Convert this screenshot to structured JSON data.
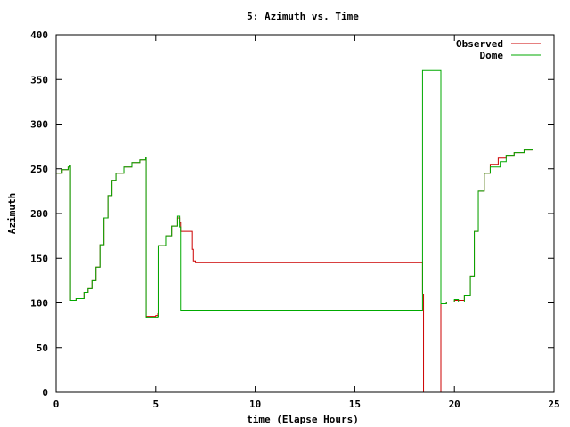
{
  "chart_data": {
    "type": "line",
    "title": "5: Azimuth vs. Time",
    "xlabel": "time (Elapse Hours)",
    "ylabel": "Azimuth",
    "xlim": [
      0,
      25
    ],
    "ylim": [
      0,
      400
    ],
    "xticks": [
      0,
      5,
      10,
      15,
      20,
      25
    ],
    "yticks": [
      0,
      50,
      100,
      150,
      200,
      250,
      300,
      350,
      400
    ],
    "grid": false,
    "legend_position": "top-right",
    "series": [
      {
        "name": "Observed",
        "color": "#cc0000",
        "step": true,
        "points": [
          [
            0,
            245
          ],
          [
            0.3,
            249
          ],
          [
            0.6,
            252
          ],
          [
            0.7,
            253
          ],
          [
            0.72,
            103
          ],
          [
            1.0,
            105
          ],
          [
            1.4,
            112
          ],
          [
            1.6,
            116
          ],
          [
            1.8,
            125
          ],
          [
            2.0,
            140
          ],
          [
            2.2,
            165
          ],
          [
            2.4,
            195
          ],
          [
            2.6,
            220
          ],
          [
            2.8,
            237
          ],
          [
            3.0,
            245
          ],
          [
            3.4,
            252
          ],
          [
            3.8,
            257
          ],
          [
            4.2,
            260
          ],
          [
            4.5,
            262
          ],
          [
            4.52,
            85
          ],
          [
            5.0,
            86
          ],
          [
            5.1,
            88
          ],
          [
            5.12,
            164
          ],
          [
            5.5,
            175
          ],
          [
            5.8,
            186
          ],
          [
            6.1,
            195
          ],
          [
            6.2,
            190
          ],
          [
            6.25,
            180
          ],
          [
            6.8,
            180
          ],
          [
            6.85,
            160
          ],
          [
            6.9,
            147
          ],
          [
            7.0,
            145
          ],
          [
            18.3,
            145
          ],
          [
            18.4,
            110
          ],
          [
            18.45,
            0
          ],
          [
            19.3,
            0
          ],
          [
            19.32,
            99
          ],
          [
            19.6,
            101
          ],
          [
            20.0,
            103
          ],
          [
            20.2,
            103
          ],
          [
            20.5,
            108
          ],
          [
            20.8,
            130
          ],
          [
            21.0,
            180
          ],
          [
            21.2,
            225
          ],
          [
            21.5,
            245
          ],
          [
            21.8,
            255
          ],
          [
            22.2,
            262
          ],
          [
            22.6,
            265
          ],
          [
            23.0,
            268
          ],
          [
            23.5,
            271
          ],
          [
            23.9,
            272
          ]
        ]
      },
      {
        "name": "Dome",
        "color": "#00aa00",
        "step": true,
        "points": [
          [
            0,
            245
          ],
          [
            0.3,
            249
          ],
          [
            0.6,
            252
          ],
          [
            0.7,
            254
          ],
          [
            0.72,
            103
          ],
          [
            1.0,
            105
          ],
          [
            1.4,
            112
          ],
          [
            1.6,
            116
          ],
          [
            1.8,
            125
          ],
          [
            2.0,
            140
          ],
          [
            2.2,
            165
          ],
          [
            2.4,
            195
          ],
          [
            2.6,
            220
          ],
          [
            2.8,
            237
          ],
          [
            3.0,
            245
          ],
          [
            3.4,
            252
          ],
          [
            3.8,
            257
          ],
          [
            4.2,
            260
          ],
          [
            4.5,
            263
          ],
          [
            4.52,
            84
          ],
          [
            5.0,
            84
          ],
          [
            5.1,
            85
          ],
          [
            5.12,
            164
          ],
          [
            5.5,
            175
          ],
          [
            5.8,
            186
          ],
          [
            6.1,
            197
          ],
          [
            6.2,
            185
          ],
          [
            6.25,
            91
          ],
          [
            18.3,
            91
          ],
          [
            18.4,
            360
          ],
          [
            19.3,
            360
          ],
          [
            19.32,
            99
          ],
          [
            19.6,
            101
          ],
          [
            20.0,
            104
          ],
          [
            20.2,
            101
          ],
          [
            20.5,
            108
          ],
          [
            20.8,
            130
          ],
          [
            21.0,
            180
          ],
          [
            21.2,
            225
          ],
          [
            21.5,
            245
          ],
          [
            21.8,
            252
          ],
          [
            22.2,
            252
          ],
          [
            22.3,
            258
          ],
          [
            22.6,
            265
          ],
          [
            23.0,
            268
          ],
          [
            23.5,
            271
          ],
          [
            23.9,
            272
          ]
        ]
      }
    ]
  }
}
